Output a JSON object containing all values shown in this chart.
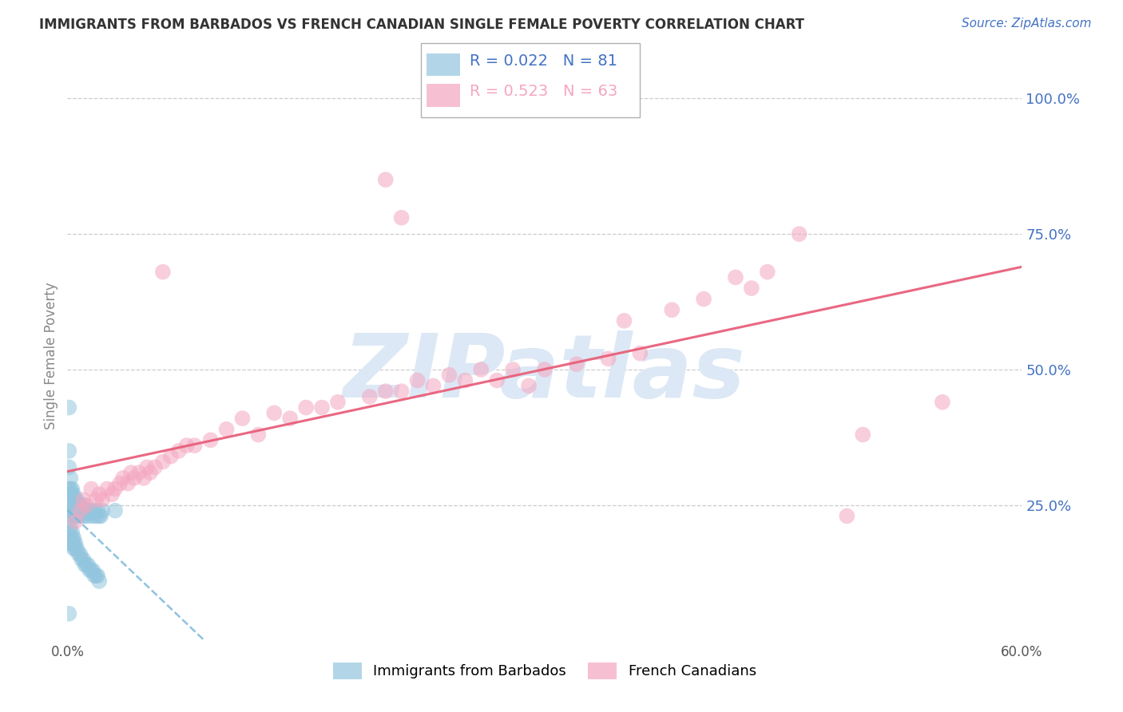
{
  "title": "IMMIGRANTS FROM BARBADOS VS FRENCH CANADIAN SINGLE FEMALE POVERTY CORRELATION CHART",
  "source": "Source: ZipAtlas.com",
  "ylabel": "Single Female Poverty",
  "legend_labels": [
    "Immigrants from Barbados",
    "French Canadians"
  ],
  "blue_R": 0.022,
  "blue_N": 81,
  "pink_R": 0.523,
  "pink_N": 63,
  "blue_color": "#92c5de",
  "pink_color": "#f4a6c0",
  "blue_line_color": "#7ab8d9",
  "pink_line_color": "#e8607a",
  "xlim": [
    0.0,
    0.6
  ],
  "ylim": [
    0.0,
    1.05
  ],
  "x_ticks": [
    0.0,
    0.1,
    0.2,
    0.3,
    0.4,
    0.5,
    0.6
  ],
  "x_tick_labels_show": [
    "0.0%",
    "",
    "",
    "",
    "",
    "",
    "60.0%"
  ],
  "y_ticks_right": [
    0.25,
    0.5,
    0.75,
    1.0
  ],
  "y_tick_labels_right": [
    "25.0%",
    "50.0%",
    "75.0%",
    "100.0%"
  ],
  "blue_x": [
    0.001,
    0.001,
    0.001,
    0.001,
    0.001,
    0.002,
    0.002,
    0.002,
    0.002,
    0.002,
    0.002,
    0.003,
    0.003,
    0.003,
    0.003,
    0.003,
    0.003,
    0.004,
    0.004,
    0.004,
    0.004,
    0.005,
    0.005,
    0.005,
    0.005,
    0.006,
    0.006,
    0.006,
    0.007,
    0.007,
    0.007,
    0.008,
    0.008,
    0.009,
    0.009,
    0.01,
    0.01,
    0.011,
    0.011,
    0.012,
    0.013,
    0.014,
    0.015,
    0.016,
    0.017,
    0.018,
    0.019,
    0.02,
    0.021,
    0.022,
    0.001,
    0.001,
    0.002,
    0.002,
    0.003,
    0.003,
    0.004,
    0.004,
    0.005,
    0.005,
    0.006,
    0.007,
    0.008,
    0.009,
    0.01,
    0.011,
    0.012,
    0.013,
    0.014,
    0.015,
    0.016,
    0.017,
    0.018,
    0.019,
    0.02,
    0.001,
    0.002,
    0.003,
    0.004,
    0.001,
    0.03
  ],
  "blue_y": [
    0.43,
    0.35,
    0.32,
    0.28,
    0.25,
    0.3,
    0.28,
    0.27,
    0.26,
    0.25,
    0.24,
    0.28,
    0.27,
    0.26,
    0.25,
    0.24,
    0.23,
    0.27,
    0.26,
    0.25,
    0.24,
    0.26,
    0.25,
    0.24,
    0.23,
    0.26,
    0.25,
    0.24,
    0.25,
    0.24,
    0.23,
    0.25,
    0.24,
    0.24,
    0.23,
    0.25,
    0.24,
    0.24,
    0.23,
    0.24,
    0.23,
    0.24,
    0.24,
    0.23,
    0.24,
    0.23,
    0.24,
    0.23,
    0.23,
    0.24,
    0.2,
    0.18,
    0.19,
    0.18,
    0.19,
    0.18,
    0.18,
    0.17,
    0.18,
    0.17,
    0.17,
    0.16,
    0.16,
    0.15,
    0.15,
    0.14,
    0.14,
    0.14,
    0.13,
    0.13,
    0.13,
    0.12,
    0.12,
    0.12,
    0.11,
    0.22,
    0.21,
    0.2,
    0.19,
    0.05,
    0.24
  ],
  "pink_x": [
    0.005,
    0.008,
    0.01,
    0.012,
    0.015,
    0.018,
    0.02,
    0.022,
    0.025,
    0.028,
    0.03,
    0.033,
    0.035,
    0.038,
    0.04,
    0.042,
    0.045,
    0.048,
    0.05,
    0.052,
    0.055,
    0.06,
    0.065,
    0.07,
    0.075,
    0.08,
    0.09,
    0.1,
    0.11,
    0.12,
    0.13,
    0.14,
    0.15,
    0.16,
    0.17,
    0.19,
    0.2,
    0.21,
    0.22,
    0.23,
    0.24,
    0.25,
    0.26,
    0.27,
    0.28,
    0.29,
    0.3,
    0.32,
    0.34,
    0.35,
    0.36,
    0.38,
    0.4,
    0.42,
    0.43,
    0.44,
    0.46,
    0.49,
    0.5,
    0.55,
    0.2,
    0.21,
    0.06
  ],
  "pink_y": [
    0.22,
    0.24,
    0.26,
    0.25,
    0.28,
    0.26,
    0.27,
    0.26,
    0.28,
    0.27,
    0.28,
    0.29,
    0.3,
    0.29,
    0.31,
    0.3,
    0.31,
    0.3,
    0.32,
    0.31,
    0.32,
    0.33,
    0.34,
    0.35,
    0.36,
    0.36,
    0.37,
    0.39,
    0.41,
    0.38,
    0.42,
    0.41,
    0.43,
    0.43,
    0.44,
    0.45,
    0.46,
    0.46,
    0.48,
    0.47,
    0.49,
    0.48,
    0.5,
    0.48,
    0.5,
    0.47,
    0.5,
    0.51,
    0.52,
    0.59,
    0.53,
    0.61,
    0.63,
    0.67,
    0.65,
    0.68,
    0.75,
    0.23,
    0.38,
    0.44,
    0.85,
    0.78,
    0.68
  ],
  "background_color": "#ffffff",
  "grid_color": "#cccccc",
  "title_color": "#333333",
  "axis_label_color": "#888888",
  "right_axis_color": "#4472c4",
  "watermark_text": "ZIPatlas",
  "watermark_color": "#dce8f5"
}
